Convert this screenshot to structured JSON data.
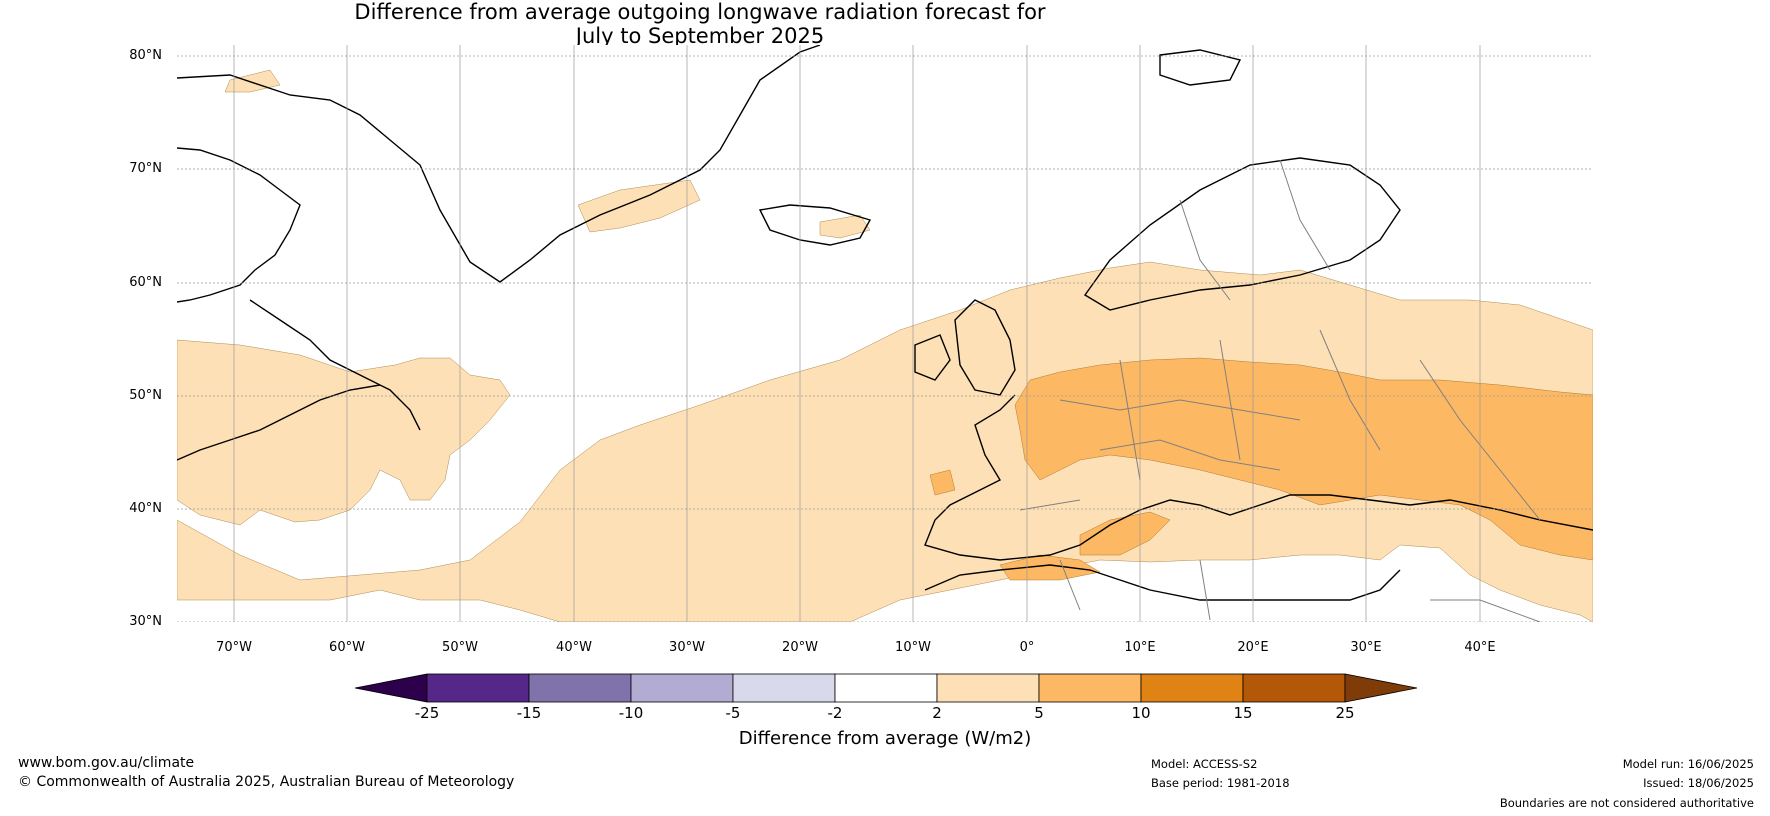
{
  "title": {
    "line1": "Difference from average outgoing longwave radiation forecast for",
    "line2": "July to September 2025"
  },
  "map": {
    "lon_range": [
      -75,
      50
    ],
    "lat_range": [
      30,
      81
    ],
    "lat_labels": [
      {
        "value": 80,
        "text": "80°N"
      },
      {
        "value": 70,
        "text": "70°N"
      },
      {
        "value": 60,
        "text": "60°N"
      },
      {
        "value": 50,
        "text": "50°N"
      },
      {
        "value": 40,
        "text": "40°N"
      },
      {
        "value": 30,
        "text": "30°N"
      }
    ],
    "lon_labels": [
      {
        "value": -70,
        "text": "70°W"
      },
      {
        "value": -60,
        "text": "60°W"
      },
      {
        "value": -50,
        "text": "50°W"
      },
      {
        "value": -40,
        "text": "40°W"
      },
      {
        "value": -30,
        "text": "30°W"
      },
      {
        "value": -20,
        "text": "20°W"
      },
      {
        "value": -10,
        "text": "10°W"
      },
      {
        "value": 0,
        "text": "0°"
      },
      {
        "value": 10,
        "text": "10°E"
      },
      {
        "value": 20,
        "text": "20°E"
      },
      {
        "value": 30,
        "text": "30°E"
      },
      {
        "value": 40,
        "text": "40°E"
      }
    ],
    "colors": {
      "c2_5": "#fde0b6",
      "c5_10": "#fdb863",
      "land_outline": "#000000",
      "border": "#808080",
      "grid": "#999999"
    }
  },
  "colorbar": {
    "label": "Difference from average (W/m2)",
    "ticks": [
      "-25",
      "-15",
      "-10",
      "-5",
      "-2",
      "2",
      "5",
      "10",
      "15",
      "25"
    ],
    "colors": [
      "#2d004b",
      "#542788",
      "#8073ac",
      "#b2abd2",
      "#d8daeb",
      "#ffffff",
      "#fee0b6",
      "#fdb863",
      "#e08214",
      "#b35806",
      "#7f3b08"
    ]
  },
  "footer": {
    "website": "www.bom.gov.au/climate",
    "copyright": "© Commonwealth of Australia 2025, Australian Bureau of Meteorology",
    "model": "Model: ACCESS-S2",
    "base_period": "Base period: 1981-2018",
    "model_run": "Model run: 16/06/2025",
    "issued": "Issued: 18/06/2025",
    "disclaimer": "Boundaries are not considered authoritative"
  }
}
